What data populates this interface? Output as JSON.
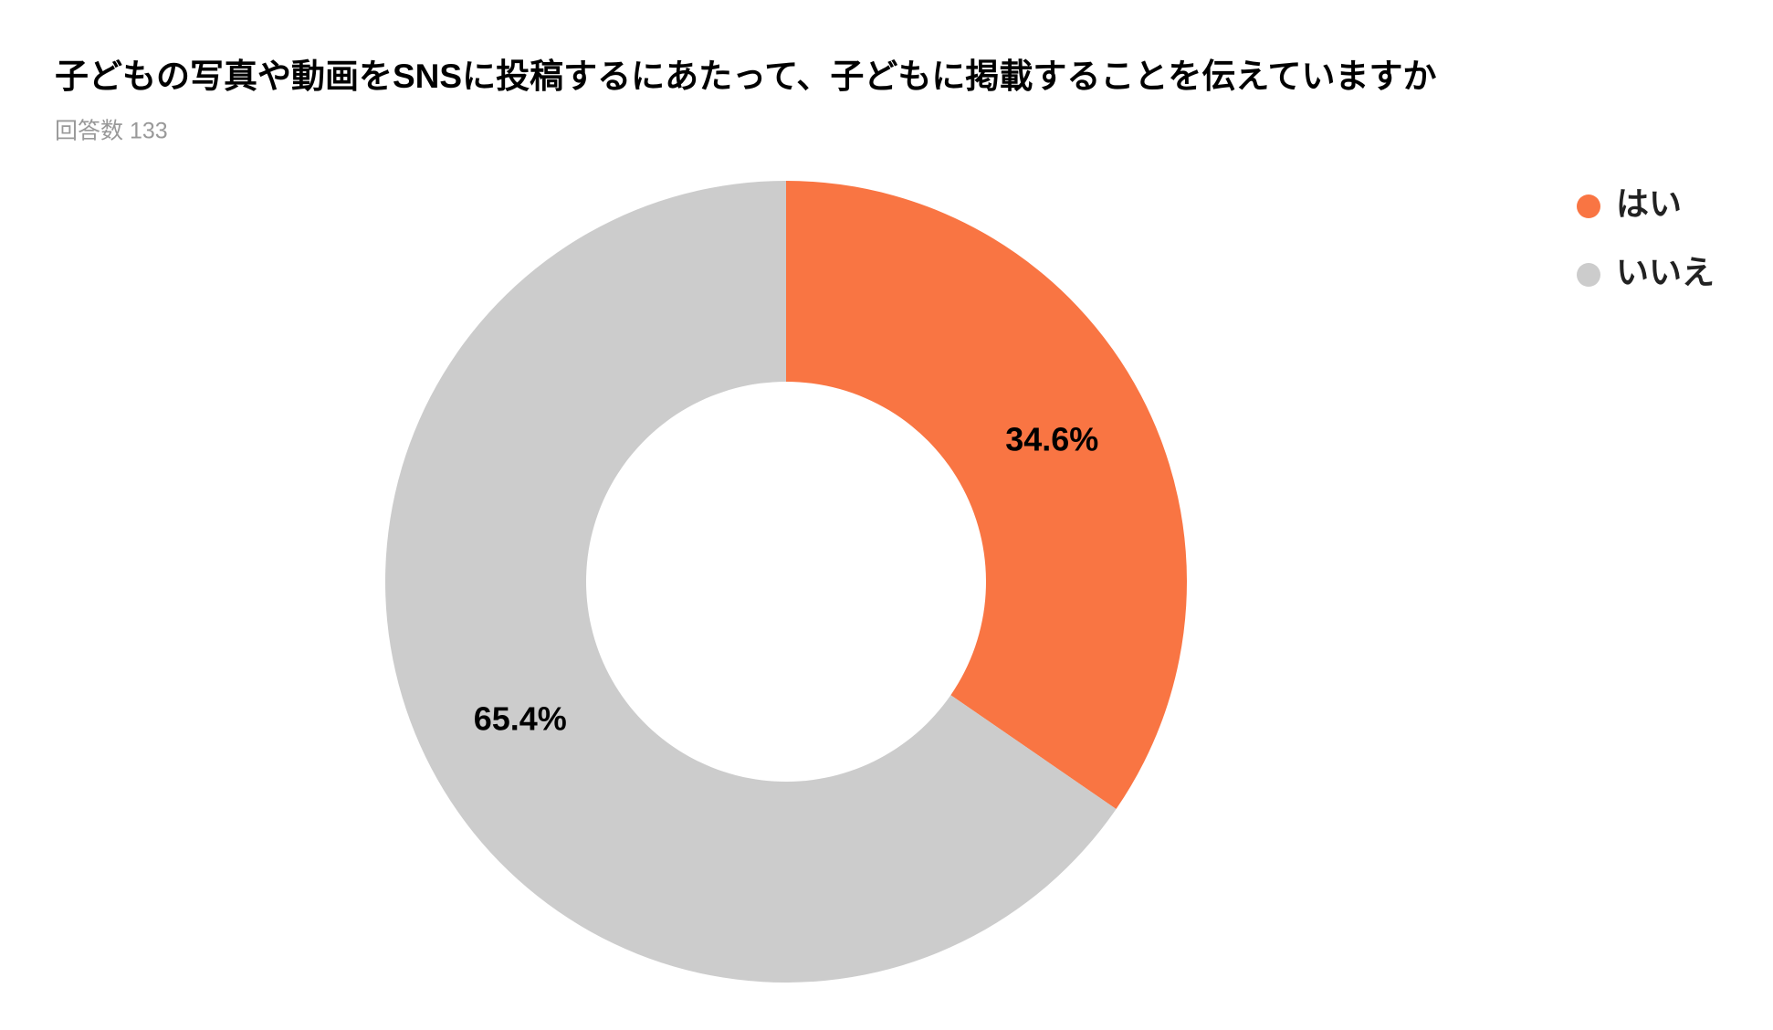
{
  "chart_data": {
    "type": "donut",
    "title": "子どもの写真や動画をSNSに投稿するにあたって、子どもに掲載することを伝えていますか",
    "subtitle": "回答数 133",
    "categories": [
      "はい",
      "いいえ"
    ],
    "values": [
      34.6,
      65.4
    ],
    "value_labels": [
      "34.6%",
      "65.4%"
    ],
    "colors": [
      "#f97543",
      "#cccccc"
    ],
    "legend": "top-right"
  }
}
